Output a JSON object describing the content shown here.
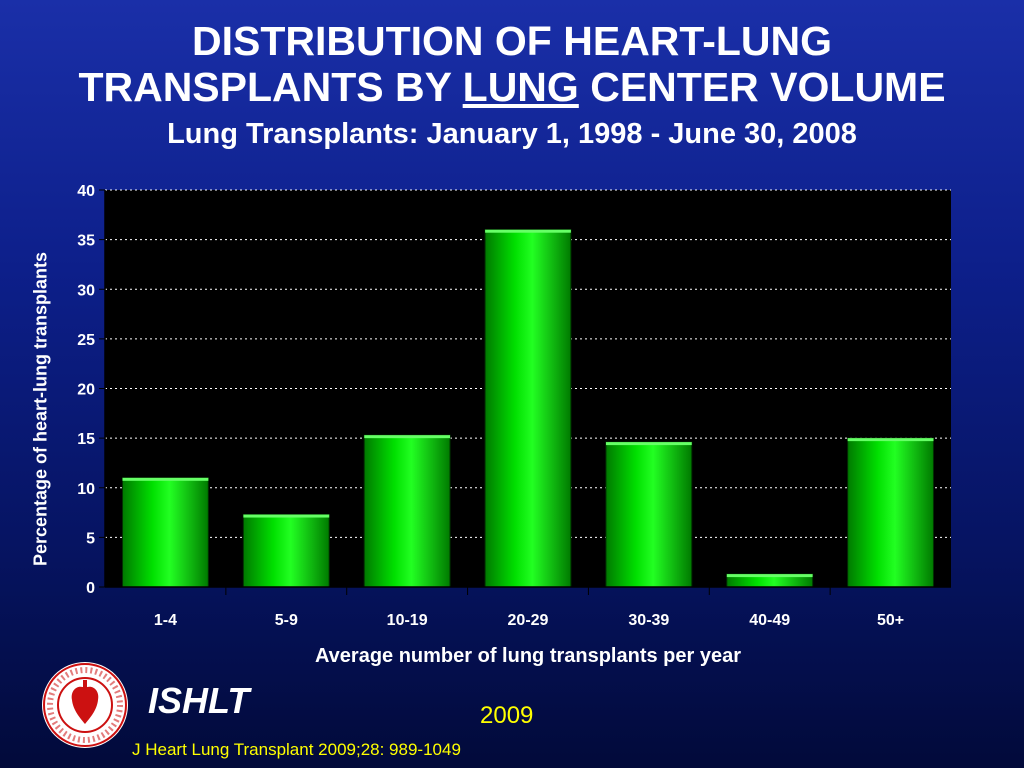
{
  "header": {
    "title_line1": "DISTRIBUTION OF HEART-LUNG",
    "title_line2_pre": "TRANSPLANTS BY ",
    "title_line2_underlined": "LUNG",
    "title_line2_post": " CENTER VOLUME",
    "subtitle": "Lung Transplants: January 1, 1998 - June 30, 2008"
  },
  "chart_data": {
    "type": "bar",
    "categories": [
      "1-4",
      "5-9",
      "10-19",
      "20-29",
      "30-39",
      "40-49",
      "50+"
    ],
    "values": [
      11.0,
      7.3,
      15.3,
      36.0,
      14.6,
      1.3,
      15.0
    ],
    "xlabel": "Average number of lung transplants per year",
    "ylabel": "Percentage of heart-lung transplants",
    "ylim": [
      0,
      40
    ],
    "yticks": [
      0,
      5,
      10,
      15,
      20,
      25,
      30,
      35,
      40
    ],
    "grid": true,
    "colors": {
      "bar": "#00cc00",
      "plot_background": "#000000"
    }
  },
  "footer": {
    "logo_name": "ishlt-logo",
    "org": "ISHLT",
    "year": "2009",
    "citation": "J Heart Lung Transplant 2009;28: 989-1049"
  }
}
